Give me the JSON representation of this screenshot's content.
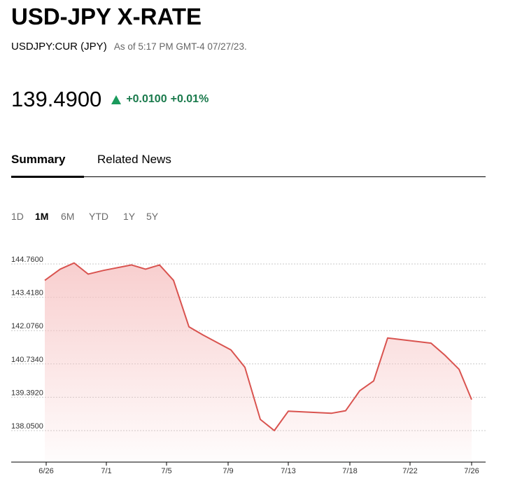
{
  "header": {
    "title": "USD-JPY X-RATE",
    "ticker": "USDJPY:CUR (JPY)",
    "as_of": "As of 5:17 PM GMT-4 07/27/23."
  },
  "quote": {
    "price": "139.4900",
    "change": "+0.0100",
    "change_pct": "+0.01%",
    "direction_icon": "triangle-up-icon",
    "change_color": "#1a7a4c"
  },
  "tabs": [
    {
      "label": "Summary",
      "active": true
    },
    {
      "label": "Related News",
      "active": false
    }
  ],
  "ranges": [
    {
      "label": "1D",
      "active": false
    },
    {
      "label": "1M",
      "active": true
    },
    {
      "label": "6M",
      "active": false
    },
    {
      "label": "YTD",
      "active": false
    },
    {
      "label": "1Y",
      "active": false
    },
    {
      "label": "5Y",
      "active": false
    }
  ],
  "chart_data": {
    "type": "area",
    "line_color": "#d9534f",
    "fill_color": "#f7c6c6",
    "y_ticks": [
      "144.7600",
      "143.4180",
      "142.0760",
      "140.7340",
      "139.3920",
      "138.0500"
    ],
    "ylim": [
      136.9,
      145.5
    ],
    "grid": true,
    "x_ticks": [
      {
        "label": "6/26",
        "x": 0
      },
      {
        "label": "7/1",
        "x": 4.3
      },
      {
        "label": "7/5",
        "x": 8.6
      },
      {
        "label": "7/9",
        "x": 13
      },
      {
        "label": "7/13",
        "x": 17.3
      },
      {
        "label": "7/18",
        "x": 21.7
      },
      {
        "label": "7/22",
        "x": 26
      },
      {
        "label": "7/26",
        "x": 30.4
      }
    ],
    "points": [
      {
        "x": -0.1,
        "y": 144.1
      },
      {
        "x": 1.0,
        "y": 144.55
      },
      {
        "x": 2.0,
        "y": 144.8
      },
      {
        "x": 3.0,
        "y": 144.35
      },
      {
        "x": 4.1,
        "y": 144.5
      },
      {
        "x": 6.1,
        "y": 144.72
      },
      {
        "x": 7.1,
        "y": 144.55
      },
      {
        "x": 8.1,
        "y": 144.72
      },
      {
        "x": 9.1,
        "y": 144.1
      },
      {
        "x": 10.2,
        "y": 142.23
      },
      {
        "x": 11.2,
        "y": 141.9
      },
      {
        "x": 13.2,
        "y": 141.3
      },
      {
        "x": 14.2,
        "y": 140.6
      },
      {
        "x": 15.3,
        "y": 138.5
      },
      {
        "x": 16.3,
        "y": 138.05
      },
      {
        "x": 17.3,
        "y": 138.83
      },
      {
        "x": 20.4,
        "y": 138.75
      },
      {
        "x": 21.4,
        "y": 138.85
      },
      {
        "x": 22.4,
        "y": 139.65
      },
      {
        "x": 23.4,
        "y": 140.05
      },
      {
        "x": 24.4,
        "y": 141.78
      },
      {
        "x": 27.5,
        "y": 141.57
      },
      {
        "x": 28.5,
        "y": 141.08
      },
      {
        "x": 29.5,
        "y": 140.52
      },
      {
        "x": 30.4,
        "y": 139.3
      }
    ]
  }
}
